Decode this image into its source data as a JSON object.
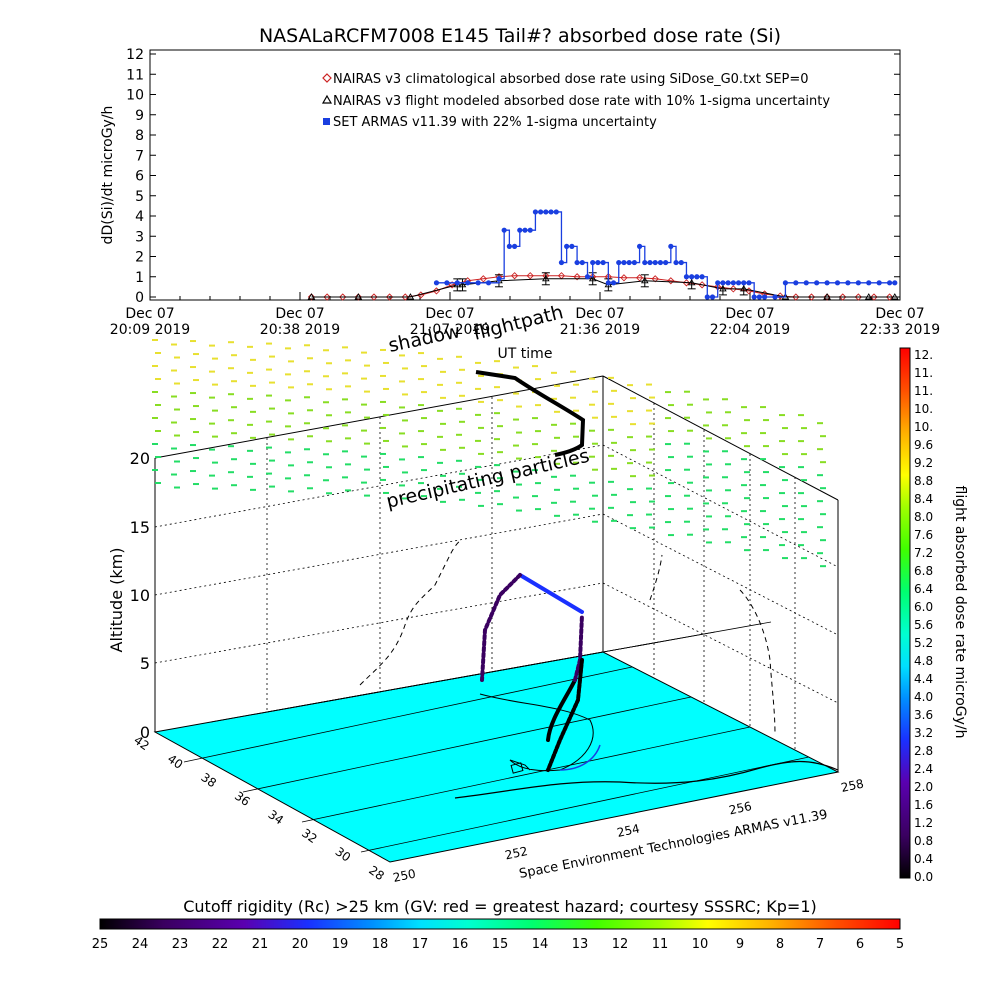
{
  "title": "NASALaRCFM7008  E145 Tail#? absorbed dose rate (Si)",
  "top_chart": {
    "ylabel": "dD(Si)/dt microGy/h",
    "xlabel": "UT time",
    "yticks": [
      "0",
      "1",
      "2",
      "3",
      "4",
      "5",
      "6",
      "7",
      "8",
      "9",
      "10",
      "11",
      "12"
    ],
    "xticks": [
      {
        "l1": "Dec 07",
        "l2": "20:09 2019"
      },
      {
        "l1": "Dec 07",
        "l2": "20:38 2019"
      },
      {
        "l1": "Dec 07",
        "l2": "21:07 2019"
      },
      {
        "l1": "Dec 07",
        "l2": "21:36 2019"
      },
      {
        "l1": "Dec 07",
        "l2": "22:04 2019"
      },
      {
        "l1": "Dec 07",
        "l2": "22:33 2019"
      }
    ],
    "legend": [
      "NAIRAS v3 climatological absorbed dose rate using SiDose_G0.txt SEP=0",
      "NAIRAS v3 flight modeled absorbed dose rate with 10% 1-sigma uncertainty",
      "SET ARMAS v11.39 with 22% 1-sigma uncertainty"
    ]
  },
  "chart_data": [
    {
      "type": "line",
      "title": "NASALaRCFM7008  E145 Tail#? absorbed dose rate (Si)",
      "xlabel": "UT time",
      "ylabel": "dD(Si)/dt microGy/h",
      "ylim": [
        0,
        12
      ],
      "x_unit": "minutes after Dec 07 20:09 2019 UT",
      "xlim": [
        0,
        144
      ],
      "series": [
        {
          "name": "NAIRAS v3 climatological absorbed dose rate using SiDose_G0.txt SEP=0",
          "color": "#cc2222",
          "marker": "diamond",
          "x": [
            31,
            34,
            37,
            40,
            43,
            46,
            49,
            52,
            55,
            58,
            61,
            64,
            67,
            70,
            73,
            76,
            79,
            82,
            85,
            88,
            91,
            94,
            97,
            100,
            103,
            106,
            109,
            112,
            115,
            118,
            121,
            124,
            127,
            130,
            133,
            136,
            139,
            142
          ],
          "y": [
            0,
            0,
            0,
            0,
            0,
            0,
            0,
            0.1,
            0.3,
            0.6,
            0.8,
            0.9,
            1.0,
            1.05,
            1.05,
            1.05,
            1.05,
            1.0,
            1.0,
            1.0,
            0.95,
            0.95,
            0.9,
            0.8,
            0.7,
            0.6,
            0.5,
            0.4,
            0.3,
            0.15,
            0.05,
            0,
            0,
            0,
            0,
            0,
            0,
            0
          ]
        },
        {
          "name": "NAIRAS v3 flight modeled absorbed dose rate with 10% 1-sigma uncertainty",
          "color": "#000000",
          "marker": "triangle",
          "x": [
            31,
            40,
            50,
            59,
            60,
            67,
            76,
            85,
            88,
            95,
            104,
            110,
            114,
            122,
            130,
            138,
            143
          ],
          "y": [
            0,
            0,
            0,
            0.6,
            0.6,
            0.8,
            0.9,
            0.9,
            0.6,
            0.8,
            0.7,
            0.4,
            0.4,
            0,
            0,
            0,
            0
          ]
        },
        {
          "name": "SET ARMAS v11.39 with 22% 1-sigma uncertainty",
          "color": "#1a3fe0",
          "marker": "square",
          "x": [
            55,
            57,
            59,
            61,
            63,
            65,
            67,
            68,
            69,
            70,
            71,
            72,
            73,
            74,
            75,
            76,
            77,
            78,
            79,
            80,
            81,
            82,
            83,
            84,
            85,
            86,
            87,
            88,
            89,
            90,
            91,
            92,
            93,
            94,
            95,
            96,
            97,
            98,
            99,
            100,
            101,
            102,
            103,
            104,
            105,
            106,
            107,
            108,
            109,
            110,
            111,
            112,
            113,
            114,
            115,
            116,
            117,
            118,
            120,
            122,
            124,
            126,
            128,
            130,
            132,
            134,
            136,
            138,
            140,
            142,
            143
          ],
          "y": [
            0.7,
            0.7,
            0.7,
            0.7,
            0.7,
            0.7,
            0.9,
            3.3,
            2.5,
            2.5,
            3.3,
            3.3,
            3.3,
            4.2,
            4.2,
            4.2,
            4.2,
            4.2,
            1.7,
            2.5,
            2.5,
            1.7,
            1.7,
            1.0,
            1.7,
            1.7,
            1.7,
            0.7,
            0.7,
            1.7,
            1.7,
            1.7,
            1.7,
            2.5,
            1.7,
            1.7,
            1.7,
            1.7,
            1.7,
            2.5,
            1.7,
            1.7,
            1.0,
            1.0,
            1.0,
            1.0,
            0.0,
            0.0,
            0.7,
            0.7,
            0.7,
            0.7,
            0.7,
            0.7,
            0.7,
            0.0,
            0.0,
            0.0,
            0.0,
            0.7,
            0.7,
            0.7,
            0.7,
            0.7,
            0.7,
            0.7,
            0.7,
            0.7,
            0.7,
            0.7,
            0.7
          ]
        }
      ]
    },
    {
      "type": "scatter",
      "title": "",
      "ylabel": "Altitude (km)",
      "zticks": [
        "0",
        "5",
        "10",
        "15",
        "20"
      ],
      "lat_ticks": [
        "42",
        "40",
        "38",
        "36",
        "34",
        "32",
        "30",
        "28"
      ],
      "lon_ticks": [
        "250",
        "252",
        "254",
        "256",
        "258"
      ],
      "annotations": [
        "shadow",
        "flightpath",
        "precipitating particles"
      ],
      "credit": "Space Environment Technologies ARMAS v11.39",
      "colorbar": {
        "label": "flight absorbed dose rate microGy/h",
        "ticks": [
          "0.0",
          "0.4",
          "0.8",
          "1.2",
          "1.6",
          "2.0",
          "2.4",
          "2.8",
          "3.2",
          "3.6",
          "4.0",
          "4.4",
          "4.8",
          "5.2",
          "5.6",
          "6.0",
          "6.4",
          "6.8",
          "7.2",
          "7.6",
          "8.0",
          "8.4",
          "8.8",
          "9.2",
          "9.6",
          "10.",
          "10.",
          "11.",
          "11.",
          "12."
        ]
      },
      "bottom_colorbar": {
        "label": "Cutoff rigidity (Rc) >25 km (GV: red = greatest hazard; courtesy SSSRC; Kp=1)",
        "ticks": [
          "25",
          "24",
          "23",
          "22",
          "21",
          "20",
          "19",
          "18",
          "17",
          "16",
          "15",
          "14",
          "13",
          "12",
          "11",
          "10",
          "9",
          "8",
          "7",
          "6",
          "5"
        ]
      }
    }
  ],
  "colors": {
    "floor": "#00ffff",
    "set_series": "#1a3fe0",
    "nairas_clim": "#cc2222",
    "particles_top": "#e8e030",
    "particles_mid": "#88dd22",
    "particles_low": "#22dd66"
  }
}
